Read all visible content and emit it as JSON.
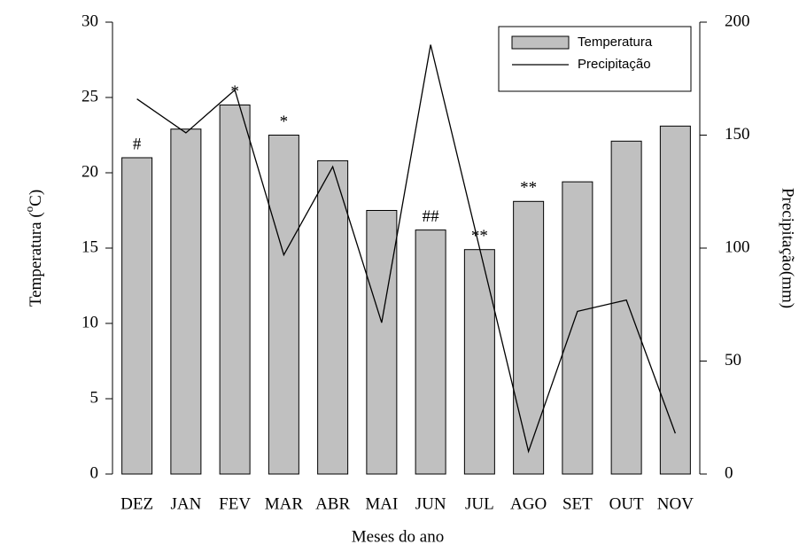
{
  "chart_data": {
    "type": "bar_line",
    "categories": [
      "DEZ",
      "JAN",
      "FEV",
      "MAR",
      "ABR",
      "MAI",
      "JUN",
      "JUL",
      "AGO",
      "SET",
      "OUT",
      "NOV"
    ],
    "series": [
      {
        "name": "Temperatura",
        "type": "bar",
        "color": "#c0c0c0",
        "values": [
          21,
          22.9,
          24.5,
          22.5,
          20.8,
          17.5,
          16.2,
          14.9,
          18.1,
          19.4,
          22.1,
          23.1
        ]
      },
      {
        "name": "Precipitação",
        "type": "line",
        "axis": "y2",
        "color": "#000000",
        "values": [
          166,
          151,
          170,
          97,
          136,
          67,
          190,
          100,
          10,
          72,
          77,
          18
        ]
      }
    ],
    "markers": [
      "#",
      null,
      "*",
      "*",
      null,
      null,
      "##",
      "**",
      "**",
      null,
      null,
      null
    ],
    "xlabel": "Meses do ano",
    "ylabel": {
      "text": "Temperatura (",
      "sup": "o",
      "after": "C)"
    },
    "y2label": "Precipitação(mm)",
    "ylim": [
      0,
      30
    ],
    "yticks": [
      0,
      5,
      10,
      15,
      20,
      25,
      30
    ],
    "y2lim": [
      0,
      200
    ],
    "y2ticks": [
      0,
      50,
      100,
      150,
      200
    ],
    "legend": "upper right"
  }
}
